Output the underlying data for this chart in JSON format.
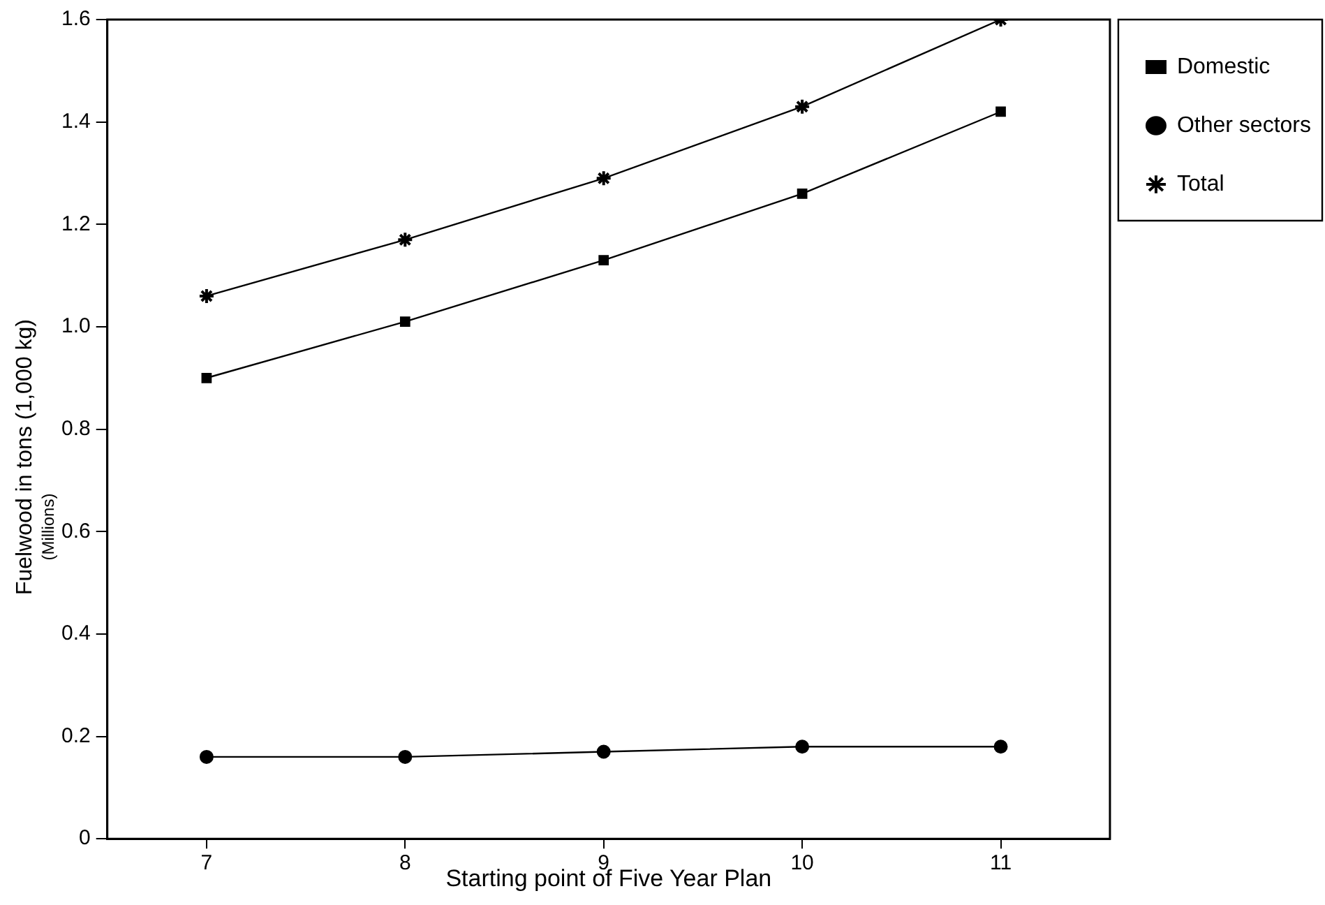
{
  "chart_data": {
    "type": "line",
    "xlabel": "Starting point of Five Year Plan",
    "ylabel": "Fuelwood in tons (1,000 kg)",
    "annotations": [
      "(Millions)"
    ],
    "x": [
      7,
      8,
      9,
      10,
      11
    ],
    "xlim": [
      6.5,
      11.55
    ],
    "xticks": [
      7,
      8,
      9,
      10,
      11
    ],
    "ylim": [
      0,
      1.6
    ],
    "yticks": [
      0,
      0.2,
      0.4,
      0.6,
      0.8,
      {
        "value": 1,
        "label": "1.0"
      },
      1.2,
      1.4,
      1.6
    ],
    "series": [
      {
        "name": "Domestic",
        "color": "#000000",
        "marker": "square",
        "values": [
          0.9,
          1.01,
          1.13,
          1.26,
          1.42
        ]
      },
      {
        "name": "Other sectors",
        "color": "#000000",
        "marker": "circle",
        "values": [
          0.16,
          0.16,
          0.17,
          0.18,
          0.18
        ]
      },
      {
        "name": "Total",
        "color": "#000000",
        "marker": "cross",
        "values": [
          1.06,
          1.17,
          1.29,
          1.43,
          1.6
        ]
      }
    ],
    "grid": false,
    "legend": "right",
    "line_style": "solid"
  }
}
